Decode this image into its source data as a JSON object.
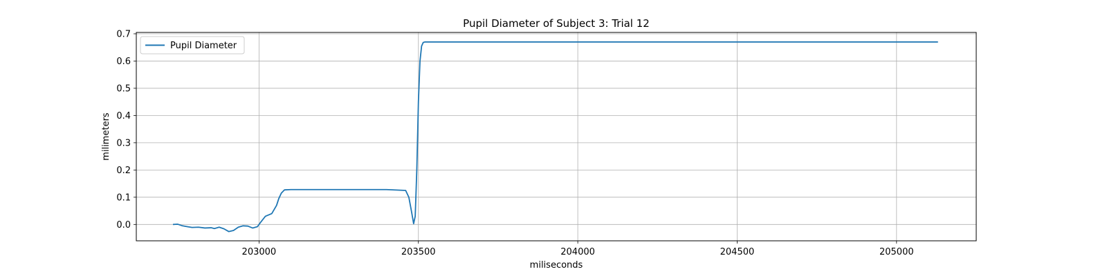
{
  "chart_data": {
    "type": "line",
    "title": "Pupil Diameter of Subject 3: Trial 12",
    "xlabel": "miliseconds",
    "ylabel": "milimeters",
    "xlim": [
      202615,
      205250
    ],
    "ylim": [
      -0.06,
      0.705
    ],
    "xticks": [
      203000,
      203500,
      204000,
      204500,
      205000
    ],
    "yticks": [
      0.0,
      0.1,
      0.2,
      0.3,
      0.4,
      0.5,
      0.6,
      0.7
    ],
    "xtick_labels": [
      "203000",
      "203500",
      "204000",
      "204500",
      "205000"
    ],
    "ytick_labels": [
      "0.0",
      "0.1",
      "0.2",
      "0.3",
      "0.4",
      "0.5",
      "0.6",
      "0.7"
    ],
    "grid": true,
    "legend": {
      "position": "top-left",
      "entries": [
        "Pupil Diameter"
      ]
    },
    "series": [
      {
        "name": "Pupil Diameter",
        "color": "#1f77b4",
        "x": [
          202730,
          202745,
          202760,
          202775,
          202790,
          202810,
          202830,
          202850,
          202860,
          202875,
          202890,
          202905,
          202920,
          202935,
          202950,
          202965,
          202980,
          202995,
          203005,
          203020,
          203040,
          203055,
          203062,
          203070,
          203080,
          203100,
          203200,
          203300,
          203400,
          203460,
          203470,
          203478,
          203485,
          203490,
          203495,
          203500,
          203505,
          203510,
          203515,
          203520,
          203530,
          203550,
          203700,
          204000,
          204500,
          205000,
          205130
        ],
        "y": [
          0.0,
          0.001,
          -0.005,
          -0.008,
          -0.011,
          -0.01,
          -0.013,
          -0.012,
          -0.015,
          -0.01,
          -0.016,
          -0.026,
          -0.022,
          -0.01,
          -0.005,
          -0.006,
          -0.013,
          -0.008,
          0.008,
          0.03,
          0.04,
          0.07,
          0.095,
          0.115,
          0.127,
          0.128,
          0.128,
          0.128,
          0.128,
          0.125,
          0.1,
          0.05,
          0.003,
          0.03,
          0.2,
          0.45,
          0.6,
          0.655,
          0.668,
          0.67,
          0.67,
          0.67,
          0.67,
          0.67,
          0.67,
          0.67,
          0.67
        ]
      }
    ]
  }
}
